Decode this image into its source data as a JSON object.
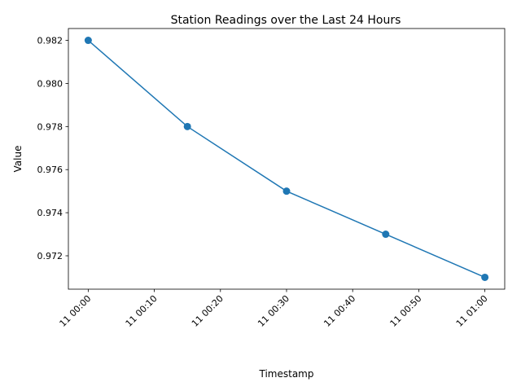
{
  "chart_data": {
    "type": "line",
    "title": "Station Readings over the Last 24 Hours",
    "xlabel": "Timestamp",
    "ylabel": "Value",
    "x_ticks": [
      "11 00:00",
      "11 00:10",
      "11 00:20",
      "11 00:30",
      "11 00:40",
      "11 00:50",
      "11 01:00"
    ],
    "y_ticks": [
      "0.972",
      "0.974",
      "0.976",
      "0.978",
      "0.980",
      "0.982"
    ],
    "x_minutes_ticks": [
      0,
      10,
      20,
      30,
      40,
      50,
      60
    ],
    "y_tick_values": [
      0.972,
      0.974,
      0.976,
      0.978,
      0.98,
      0.982
    ],
    "x_range_minutes": [
      -3,
      63
    ],
    "ylim": [
      0.97045,
      0.98255
    ],
    "series": [
      {
        "x": [
          "11 00:00",
          "11 00:15",
          "11 00:30",
          "11 00:45",
          "11 01:00"
        ],
        "x_minutes": [
          0,
          15,
          30,
          45,
          60
        ],
        "values": [
          0.982,
          0.978,
          0.975,
          0.973,
          0.971
        ],
        "color": "#1f77b4",
        "marker": "circle"
      }
    ],
    "grid": false,
    "legend": "none"
  }
}
